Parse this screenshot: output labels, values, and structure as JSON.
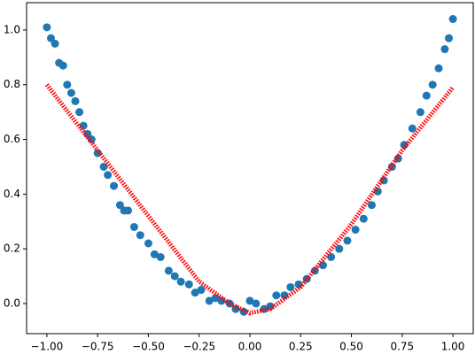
{
  "chart_data": {
    "type": "scatter",
    "xlim": [
      -1.1,
      1.1
    ],
    "ylim": [
      -0.11,
      1.1
    ],
    "xticks": [
      {
        "value": -1.0,
        "label": "−1.00"
      },
      {
        "value": -0.75,
        "label": "−0.75"
      },
      {
        "value": -0.5,
        "label": "−0.50"
      },
      {
        "value": -0.25,
        "label": "−0.25"
      },
      {
        "value": 0,
        "label": "0.00"
      },
      {
        "value": 0.25,
        "label": "0.25"
      },
      {
        "value": 0.5,
        "label": "0.50"
      },
      {
        "value": 0.75,
        "label": "0.75"
      },
      {
        "value": 1.0,
        "label": "1.00"
      }
    ],
    "yticks": [
      {
        "value": 0,
        "label": "0.0"
      },
      {
        "value": 0.2,
        "label": "0.2"
      },
      {
        "value": 0.4,
        "label": "0.4"
      },
      {
        "value": 0.6,
        "label": "0.6"
      },
      {
        "value": 0.8,
        "label": "0.8"
      },
      {
        "value": 1.0,
        "label": "1.0"
      }
    ],
    "series": [
      {
        "type": "scatter",
        "color": "#1f77b4",
        "x": [
          -1.0,
          -0.98,
          -0.96,
          -0.94,
          -0.92,
          -0.9,
          -0.88,
          -0.86,
          -0.84,
          -0.82,
          -0.8,
          -0.78,
          -0.75,
          -0.72,
          -0.7,
          -0.67,
          -0.64,
          -0.62,
          -0.6,
          -0.57,
          -0.54,
          -0.5,
          -0.47,
          -0.44,
          -0.4,
          -0.37,
          -0.34,
          -0.3,
          -0.27,
          -0.24,
          -0.2,
          -0.17,
          -0.14,
          -0.1,
          -0.07,
          -0.03,
          0.0,
          0.03,
          0.07,
          0.1,
          0.13,
          0.17,
          0.2,
          0.24,
          0.28,
          0.32,
          0.36,
          0.4,
          0.44,
          0.48,
          0.52,
          0.56,
          0.6,
          0.63,
          0.66,
          0.7,
          0.73,
          0.76,
          0.8,
          0.84,
          0.87,
          0.9,
          0.93,
          0.96,
          0.98,
          1.0
        ],
        "values": [
          1.01,
          0.97,
          0.95,
          0.88,
          0.87,
          0.8,
          0.77,
          0.74,
          0.7,
          0.65,
          0.62,
          0.6,
          0.55,
          0.5,
          0.47,
          0.43,
          0.36,
          0.34,
          0.34,
          0.28,
          0.25,
          0.22,
          0.18,
          0.17,
          0.12,
          0.1,
          0.08,
          0.07,
          0.04,
          0.05,
          0.01,
          0.02,
          0.01,
          0.0,
          -0.02,
          -0.03,
          0.01,
          0.0,
          -0.02,
          -0.01,
          0.03,
          0.03,
          0.06,
          0.07,
          0.09,
          0.12,
          0.14,
          0.17,
          0.2,
          0.23,
          0.27,
          0.31,
          0.36,
          0.41,
          0.45,
          0.5,
          0.53,
          0.58,
          0.64,
          0.7,
          0.76,
          0.8,
          0.86,
          0.93,
          0.97,
          1.04
        ]
      },
      {
        "type": "line",
        "color": "#ff0000",
        "x": [
          -1.0,
          -0.75,
          -0.5,
          -0.25,
          -0.1,
          0.0,
          0.1,
          0.25,
          0.5,
          0.75,
          1.0
        ],
        "values": [
          0.8,
          0.56,
          0.32,
          0.08,
          0.0,
          -0.035,
          -0.02,
          0.06,
          0.29,
          0.56,
          0.79
        ]
      }
    ]
  }
}
